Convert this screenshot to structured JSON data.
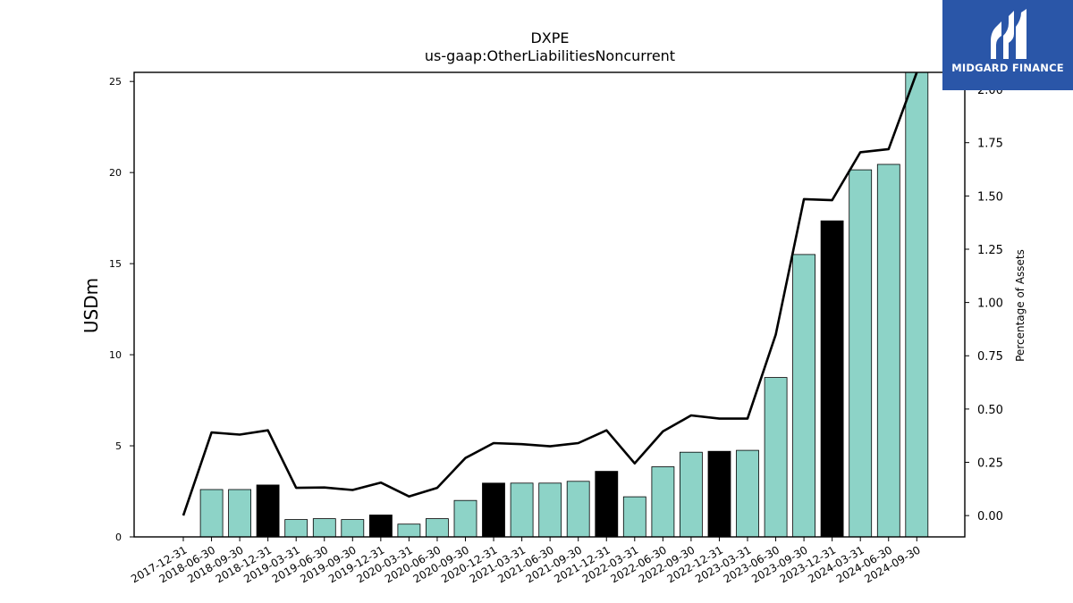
{
  "brand": {
    "name": "MIDGARD FINANCE",
    "bg_color": "#2a56a8"
  },
  "chart_data": {
    "type": "bar",
    "title": "DXPE",
    "subtitle": "us-gaap:OtherLiabilitiesNoncurrent",
    "ylabel": "USDm",
    "y2label": "Percentage of Assets",
    "ylim": [
      0,
      25.5
    ],
    "y2lim": [
      -0.1,
      2.08
    ],
    "yticks": [
      0,
      5,
      10,
      15,
      20,
      25
    ],
    "y2ticks": [
      "0.00",
      "0.25",
      "0.50",
      "0.75",
      "1.00",
      "1.25",
      "1.50",
      "1.75",
      "2.00"
    ],
    "categories": [
      "2017-12-31",
      "2018-06-30",
      "2018-09-30",
      "2018-12-31",
      "2019-03-31",
      "2019-06-30",
      "2019-09-30",
      "2019-12-31",
      "2020-03-31",
      "2020-06-30",
      "2020-09-30",
      "2020-12-31",
      "2021-03-31",
      "2021-06-30",
      "2021-09-30",
      "2021-12-31",
      "2022-03-31",
      "2022-06-30",
      "2022-09-30",
      "2022-12-31",
      "2023-03-31",
      "2023-06-30",
      "2023-09-30",
      "2023-12-31",
      "2024-03-31",
      "2024-06-30",
      "2024-09-30"
    ],
    "series": [
      {
        "kind": "bar",
        "values": [
          null,
          2.6,
          2.6,
          2.85,
          0.95,
          1.0,
          0.95,
          1.2,
          0.7,
          1.0,
          2.0,
          2.95,
          2.95,
          2.95,
          3.05,
          3.6,
          2.2,
          3.85,
          4.65,
          4.7,
          4.75,
          8.75,
          15.5,
          17.35,
          20.15,
          20.45,
          25.6
        ]
      },
      {
        "kind": "line",
        "axis": "right",
        "values": [
          0.0,
          0.39,
          0.38,
          0.4,
          0.13,
          0.132,
          0.12,
          0.155,
          0.09,
          0.13,
          0.27,
          0.34,
          0.335,
          0.325,
          0.34,
          0.4,
          0.245,
          0.395,
          0.47,
          0.455,
          0.455,
          0.85,
          1.485,
          1.48,
          1.705,
          1.72,
          2.09
        ]
      }
    ],
    "highlight_year_end": true,
    "colors": {
      "bar": "#8dd3c7",
      "bar_year_end": "#000000",
      "line": "#000000"
    },
    "grid": false
  }
}
